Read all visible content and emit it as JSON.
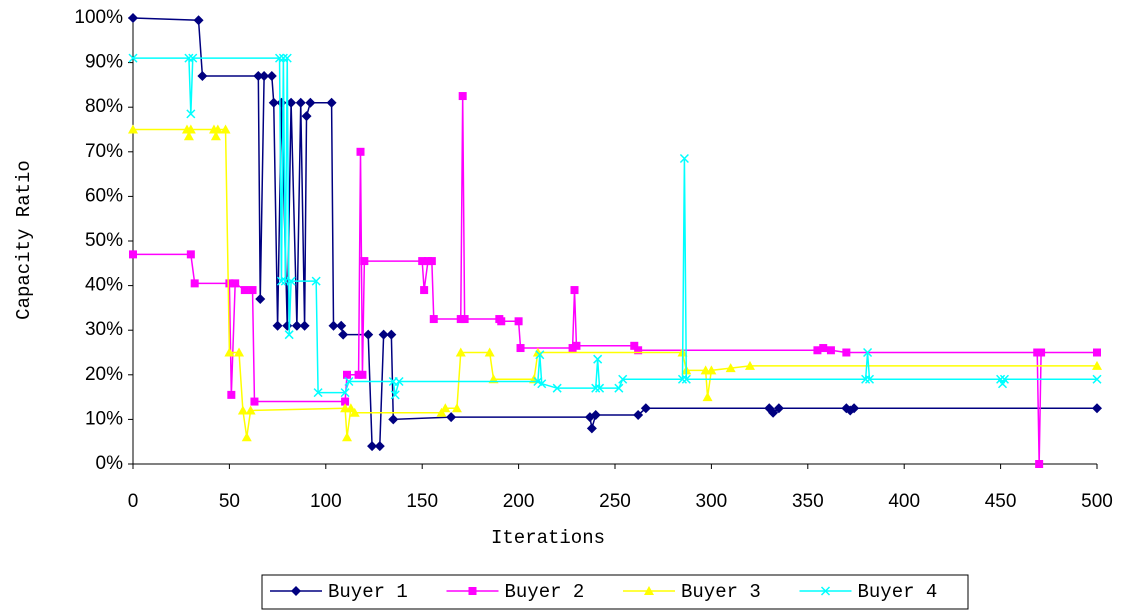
{
  "chart_data": {
    "type": "line",
    "x_label": "Iterations",
    "y_label": "Capacity Ratio",
    "legend": "bottom",
    "xlim": [
      0,
      500
    ],
    "xticks": [
      0,
      50,
      100,
      150,
      200,
      250,
      300,
      350,
      400,
      450,
      500
    ],
    "ylim": [
      0,
      100
    ],
    "yticks": [
      {
        "value": 0,
        "label": "0%"
      },
      {
        "value": 10,
        "label": "10%"
      },
      {
        "value": 20,
        "label": "20%"
      },
      {
        "value": 30,
        "label": "30%"
      },
      {
        "value": 40,
        "label": "40%"
      },
      {
        "value": 50,
        "label": "50%"
      },
      {
        "value": 60,
        "label": "60%"
      },
      {
        "value": 70,
        "label": "70%"
      },
      {
        "value": 80,
        "label": "80%"
      },
      {
        "value": 90,
        "label": "90%"
      },
      {
        "value": 100,
        "label": "100%"
      }
    ],
    "series": [
      {
        "name": "Buyer 1",
        "color": "#000080",
        "marker": "diamond",
        "x": [
          0,
          34,
          36,
          65,
          66,
          68,
          72,
          73,
          75,
          77,
          80,
          82,
          85,
          87,
          89,
          90,
          92,
          103,
          104,
          108,
          109,
          122,
          124,
          128,
          130,
          134,
          135,
          165,
          237,
          238,
          240,
          262,
          266,
          330,
          332,
          335,
          370,
          372,
          374,
          500
        ],
        "values": [
          100,
          99.5,
          87,
          87,
          37,
          87,
          87,
          81,
          31,
          81,
          31,
          81,
          31,
          81,
          31,
          78,
          81,
          81,
          31,
          31,
          29,
          29,
          4,
          4,
          29,
          29,
          10,
          10.5,
          10.5,
          8,
          11,
          11,
          12.5,
          12.5,
          11.5,
          12.5,
          12.5,
          12,
          12.5,
          12.5
        ]
      },
      {
        "name": "Buyer 2",
        "color": "#ff00ff",
        "marker": "square",
        "x": [
          0,
          30,
          32,
          50,
          51,
          53,
          58,
          62,
          63,
          110,
          111,
          117,
          118,
          119,
          120,
          150,
          151,
          153,
          155,
          156,
          170,
          171,
          172,
          190,
          191,
          200,
          201,
          228,
          229,
          230,
          260,
          262,
          355,
          358,
          362,
          370,
          469,
          470,
          471,
          500
        ],
        "values": [
          47,
          47,
          40.5,
          40.5,
          15.5,
          40.5,
          39,
          39,
          14,
          14,
          20,
          20,
          70,
          20,
          45.5,
          45.5,
          39,
          45.5,
          45.5,
          32.5,
          32.5,
          82.5,
          32.5,
          32.5,
          32,
          32,
          26,
          26,
          39,
          26.5,
          26.5,
          25.5,
          25.5,
          26,
          25.5,
          25,
          25,
          0,
          25,
          25
        ]
      },
      {
        "name": "Buyer 3",
        "color": "#ffff00",
        "marker": "triangle",
        "x": [
          0,
          28,
          29,
          30,
          42,
          43,
          44,
          48,
          50,
          55,
          57,
          59,
          61,
          110,
          111,
          113,
          115,
          160,
          162,
          168,
          170,
          185,
          187,
          208,
          210,
          285,
          287,
          297,
          298,
          300,
          310,
          320,
          500
        ],
        "values": [
          75,
          75,
          73.5,
          75,
          75,
          73.5,
          75,
          75,
          25,
          25,
          12,
          6,
          12,
          12.5,
          6,
          12.5,
          11.5,
          11.5,
          12.5,
          12.5,
          25,
          25,
          19,
          19,
          25,
          25,
          21,
          21,
          15,
          21,
          21.5,
          22,
          22
        ]
      },
      {
        "name": "Buyer 4",
        "color": "#00ffff",
        "marker": "cross",
        "x": [
          0,
          29,
          30,
          31,
          76,
          77,
          78,
          79,
          80,
          81,
          82,
          95,
          96,
          110,
          112,
          135,
          136,
          138,
          210,
          211,
          212,
          220,
          240,
          241,
          242,
          252,
          254,
          285,
          286,
          287,
          380,
          381,
          382,
          450,
          451,
          452,
          500
        ],
        "values": [
          91,
          91,
          78.5,
          91,
          91,
          41,
          91,
          41,
          91,
          29,
          41,
          41,
          16,
          16,
          18.5,
          18.5,
          15.5,
          18.5,
          18.5,
          24.5,
          18,
          17,
          17,
          23.5,
          17,
          17,
          19,
          19,
          68.5,
          19,
          19,
          25,
          19,
          19,
          18,
          19,
          19
        ]
      }
    ]
  }
}
